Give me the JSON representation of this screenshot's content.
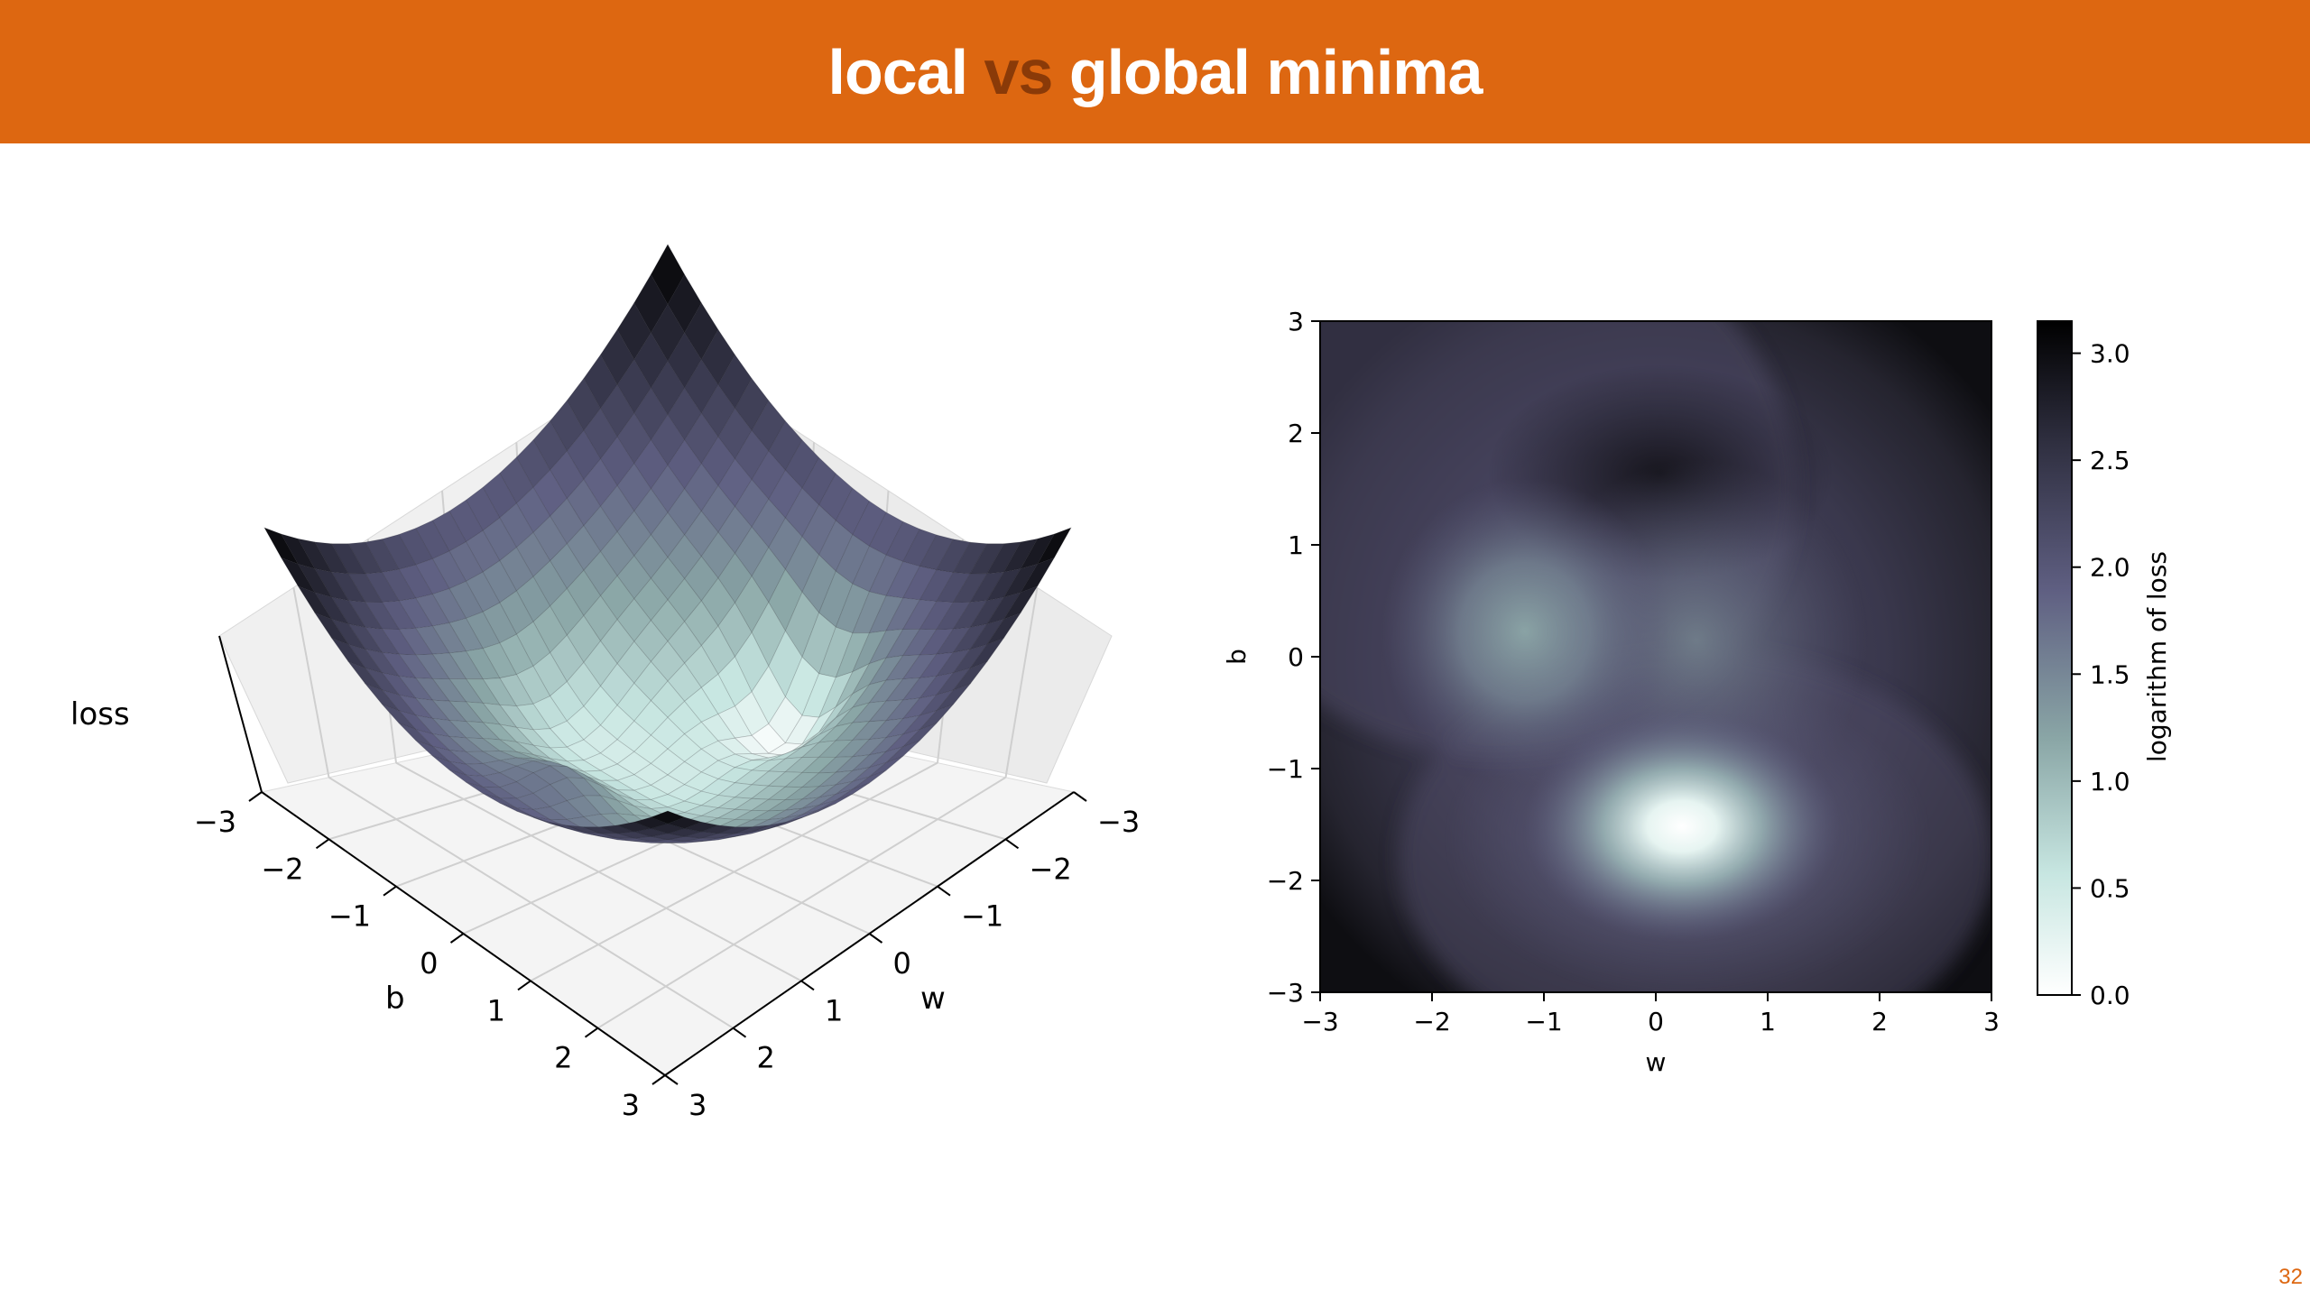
{
  "slide": {
    "title_part1": "local",
    "title_vs": "vs",
    "title_part2": "global minima",
    "page_number": "32"
  },
  "colors": {
    "header": "#dd6711",
    "vs_text": "#8a3a08",
    "colormap": [
      "#ffffff",
      "#c7e6e1",
      "#8aa6a6",
      "#5f5f82",
      "#2f2f40",
      "#000000"
    ]
  },
  "chart_data": [
    {
      "type": "surface",
      "zlabel": "loss",
      "xlabel": "w",
      "ylabel": "b",
      "xlim": [
        -3,
        3
      ],
      "ylim": [
        -3,
        3
      ],
      "x_ticks": [
        "−3",
        "−2",
        "−1",
        "0",
        "1",
        "2",
        "3"
      ],
      "y_ticks": [
        "−3",
        "−2",
        "−1",
        "0",
        "1",
        "2",
        "3"
      ],
      "grid": true
    },
    {
      "type": "heatmap",
      "xlabel": "w",
      "ylabel": "b",
      "xlim": [
        -3,
        3
      ],
      "ylim": [
        -3,
        3
      ],
      "x_ticks": [
        "−3",
        "−2",
        "−1",
        "0",
        "1",
        "2",
        "3"
      ],
      "y_ticks": [
        "−3",
        "−2",
        "−1",
        "0",
        "1",
        "2",
        "3"
      ],
      "colorbar_label": "logarithm of loss",
      "colorbar_range": [
        0,
        3.15
      ],
      "colorbar_ticks": [
        "0.0",
        "0.5",
        "1.0",
        "1.5",
        "2.0",
        "2.5",
        "3.0"
      ],
      "features": [
        {
          "kind": "global minimum",
          "w": 0.25,
          "b": -1.55,
          "log_loss": 0.0
        },
        {
          "kind": "local minimum",
          "w": -1.2,
          "b": 0.3,
          "log_loss": 1.35
        },
        {
          "kind": "local maximum",
          "w": 0.1,
          "b": 1.65,
          "log_loss": 2.85
        }
      ]
    }
  ]
}
